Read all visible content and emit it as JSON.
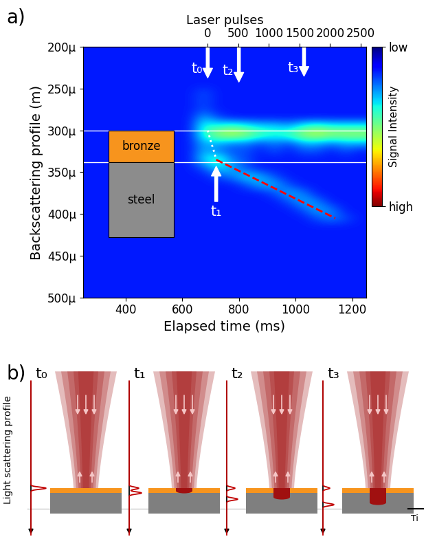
{
  "chart_data": {
    "type": "heatmap",
    "panel_label": "a)",
    "x_label": "Elapsed time (ms)",
    "y_label": "Backscattering profile (m)",
    "x2_label": "Laser pulses",
    "xlim": [
      250,
      1250
    ],
    "xticks": [
      400,
      600,
      800,
      1000,
      1200
    ],
    "ylim": [
      0.0005,
      0.0002
    ],
    "yticks": [
      {
        "value": 0.0002,
        "label": "200μ"
      },
      {
        "value": 0.00025,
        "label": "250μ"
      },
      {
        "value": 0.0003,
        "label": "300μ"
      },
      {
        "value": 0.00035,
        "label": "350μ"
      },
      {
        "value": 0.0004,
        "label": "400μ"
      },
      {
        "value": 0.00045,
        "label": "450μ"
      },
      {
        "value": 0.0005,
        "label": "500μ"
      }
    ],
    "x2lim": [
      -2037,
      2593
    ],
    "x2ticks": [
      0,
      500,
      1000,
      1500,
      2000,
      2500
    ],
    "x_edges": [
      250,
      300,
      350,
      400,
      450,
      500,
      550,
      600,
      650,
      700,
      750,
      800,
      850,
      900,
      950,
      1000,
      1050,
      1100,
      1150,
      1200,
      1250
    ],
    "y_edges": [
      0.0002,
      0.00021,
      0.00022,
      0.00023,
      0.00024,
      0.00025,
      0.00026,
      0.00027,
      0.00028,
      0.00029,
      0.0003,
      0.00031,
      0.00032,
      0.00033,
      0.00034,
      0.00035,
      0.00036,
      0.00037,
      0.00038,
      0.00039,
      0.0004,
      0.00041,
      0.00042,
      0.00043,
      0.00044,
      0.00045,
      0.00046,
      0.00047,
      0.00048,
      0.00049,
      0.0005
    ],
    "z": [
      [
        0.15,
        0.15,
        0.15,
        0.15,
        0.15,
        0.15,
        0.15,
        0.15,
        0.15,
        0.15,
        0.15,
        0.15,
        0.15,
        0.15,
        0.15,
        0.15,
        0.15,
        0.15,
        0.15,
        0.15
      ],
      [
        0.15,
        0.15,
        0.15,
        0.15,
        0.15,
        0.15,
        0.15,
        0.15,
        0.15,
        0.15,
        0.15,
        0.15,
        0.15,
        0.15,
        0.15,
        0.15,
        0.15,
        0.15,
        0.15,
        0.15
      ],
      [
        0.15,
        0.15,
        0.15,
        0.15,
        0.15,
        0.15,
        0.15,
        0.15,
        0.15,
        0.15,
        0.15,
        0.15,
        0.15,
        0.15,
        0.15,
        0.15,
        0.15,
        0.15,
        0.15,
        0.15
      ],
      [
        0.15,
        0.15,
        0.15,
        0.15,
        0.15,
        0.15,
        0.15,
        0.15,
        0.15,
        0.15,
        0.15,
        0.15,
        0.15,
        0.15,
        0.15,
        0.15,
        0.15,
        0.15,
        0.15,
        0.15
      ],
      [
        0.15,
        0.15,
        0.15,
        0.15,
        0.15,
        0.15,
        0.15,
        0.15,
        0.15,
        0.15,
        0.15,
        0.15,
        0.15,
        0.15,
        0.15,
        0.15,
        0.15,
        0.15,
        0.15,
        0.15
      ],
      [
        0.15,
        0.15,
        0.15,
        0.15,
        0.15,
        0.15,
        0.15,
        0.15,
        0.2,
        0.15,
        0.15,
        0.15,
        0.15,
        0.15,
        0.15,
        0.15,
        0.15,
        0.15,
        0.15,
        0.15
      ],
      [
        0.15,
        0.15,
        0.15,
        0.15,
        0.15,
        0.15,
        0.15,
        0.15,
        0.2,
        0.15,
        0.15,
        0.15,
        0.15,
        0.15,
        0.15,
        0.15,
        0.15,
        0.15,
        0.15,
        0.15
      ],
      [
        0.15,
        0.15,
        0.15,
        0.15,
        0.15,
        0.15,
        0.15,
        0.15,
        0.2,
        0.15,
        0.15,
        0.15,
        0.15,
        0.15,
        0.15,
        0.15,
        0.15,
        0.15,
        0.15,
        0.15
      ],
      [
        0.15,
        0.15,
        0.15,
        0.15,
        0.15,
        0.15,
        0.15,
        0.15,
        0.3,
        0.2,
        0.15,
        0.15,
        0.15,
        0.15,
        0.15,
        0.15,
        0.15,
        0.15,
        0.15,
        0.15
      ],
      [
        0.15,
        0.15,
        0.15,
        0.15,
        0.15,
        0.15,
        0.15,
        0.15,
        0.4,
        0.4,
        0.45,
        0.4,
        0.35,
        0.35,
        0.3,
        0.4,
        0.45,
        0.4,
        0.4,
        0.4
      ],
      [
        0.15,
        0.15,
        0.15,
        0.15,
        0.15,
        0.15,
        0.15,
        0.15,
        0.4,
        0.55,
        0.6,
        0.55,
        0.45,
        0.4,
        0.45,
        0.55,
        0.6,
        0.55,
        0.55,
        0.55
      ],
      [
        0.15,
        0.15,
        0.15,
        0.15,
        0.15,
        0.15,
        0.15,
        0.15,
        0.3,
        0.3,
        0.25,
        0.25,
        0.2,
        0.25,
        0.2,
        0.3,
        0.3,
        0.25,
        0.3,
        0.3
      ],
      [
        0.15,
        0.15,
        0.15,
        0.15,
        0.15,
        0.15,
        0.15,
        0.15,
        0.3,
        0.25,
        0.2,
        0.2,
        0.15,
        0.2,
        0.15,
        0.2,
        0.2,
        0.15,
        0.2,
        0.15
      ],
      [
        0.15,
        0.15,
        0.15,
        0.15,
        0.15,
        0.15,
        0.15,
        0.15,
        0.35,
        0.45,
        0.25,
        0.2,
        0.15,
        0.15,
        0.15,
        0.15,
        0.15,
        0.15,
        0.15,
        0.15
      ],
      [
        0.15,
        0.15,
        0.15,
        0.15,
        0.15,
        0.15,
        0.15,
        0.15,
        0.2,
        0.35,
        0.3,
        0.2,
        0.15,
        0.15,
        0.15,
        0.15,
        0.15,
        0.15,
        0.15,
        0.15
      ],
      [
        0.15,
        0.15,
        0.15,
        0.15,
        0.15,
        0.15,
        0.15,
        0.15,
        0.15,
        0.2,
        0.25,
        0.35,
        0.3,
        0.2,
        0.15,
        0.15,
        0.15,
        0.15,
        0.15,
        0.15
      ],
      [
        0.15,
        0.15,
        0.15,
        0.15,
        0.15,
        0.15,
        0.15,
        0.15,
        0.15,
        0.15,
        0.15,
        0.2,
        0.3,
        0.3,
        0.2,
        0.15,
        0.15,
        0.15,
        0.15,
        0.15
      ],
      [
        0.15,
        0.15,
        0.15,
        0.15,
        0.15,
        0.15,
        0.15,
        0.15,
        0.15,
        0.15,
        0.15,
        0.15,
        0.15,
        0.2,
        0.3,
        0.25,
        0.15,
        0.15,
        0.15,
        0.15
      ],
      [
        0.15,
        0.15,
        0.15,
        0.15,
        0.15,
        0.15,
        0.15,
        0.15,
        0.15,
        0.15,
        0.15,
        0.15,
        0.15,
        0.15,
        0.2,
        0.3,
        0.25,
        0.15,
        0.15,
        0.15
      ],
      [
        0.15,
        0.15,
        0.15,
        0.15,
        0.15,
        0.15,
        0.15,
        0.15,
        0.15,
        0.15,
        0.15,
        0.15,
        0.15,
        0.15,
        0.15,
        0.2,
        0.3,
        0.25,
        0.15,
        0.15
      ],
      [
        0.15,
        0.15,
        0.15,
        0.15,
        0.15,
        0.15,
        0.15,
        0.15,
        0.15,
        0.15,
        0.15,
        0.15,
        0.15,
        0.15,
        0.15,
        0.15,
        0.2,
        0.25,
        0.2,
        0.15
      ],
      [
        0.15,
        0.15,
        0.15,
        0.15,
        0.15,
        0.15,
        0.15,
        0.15,
        0.15,
        0.15,
        0.15,
        0.15,
        0.15,
        0.15,
        0.15,
        0.15,
        0.15,
        0.15,
        0.15,
        0.15
      ],
      [
        0.15,
        0.15,
        0.15,
        0.15,
        0.15,
        0.15,
        0.15,
        0.15,
        0.15,
        0.15,
        0.15,
        0.15,
        0.15,
        0.15,
        0.15,
        0.15,
        0.15,
        0.15,
        0.15,
        0.15
      ],
      [
        0.15,
        0.15,
        0.15,
        0.15,
        0.15,
        0.15,
        0.15,
        0.15,
        0.15,
        0.15,
        0.15,
        0.15,
        0.15,
        0.15,
        0.15,
        0.15,
        0.15,
        0.15,
        0.15,
        0.15
      ],
      [
        0.15,
        0.15,
        0.15,
        0.15,
        0.15,
        0.15,
        0.15,
        0.15,
        0.15,
        0.15,
        0.15,
        0.15,
        0.15,
        0.15,
        0.15,
        0.15,
        0.15,
        0.15,
        0.15,
        0.15
      ],
      [
        0.15,
        0.15,
        0.15,
        0.15,
        0.15,
        0.15,
        0.15,
        0.15,
        0.15,
        0.15,
        0.15,
        0.15,
        0.15,
        0.15,
        0.15,
        0.15,
        0.15,
        0.15,
        0.15,
        0.15
      ],
      [
        0.15,
        0.15,
        0.15,
        0.15,
        0.15,
        0.15,
        0.15,
        0.15,
        0.15,
        0.15,
        0.15,
        0.15,
        0.15,
        0.15,
        0.15,
        0.15,
        0.15,
        0.15,
        0.15,
        0.15
      ],
      [
        0.15,
        0.15,
        0.15,
        0.15,
        0.15,
        0.15,
        0.15,
        0.15,
        0.15,
        0.15,
        0.15,
        0.15,
        0.15,
        0.15,
        0.15,
        0.15,
        0.15,
        0.15,
        0.15,
        0.15
      ],
      [
        0.15,
        0.15,
        0.15,
        0.15,
        0.15,
        0.15,
        0.15,
        0.15,
        0.15,
        0.15,
        0.15,
        0.15,
        0.15,
        0.15,
        0.15,
        0.15,
        0.15,
        0.15,
        0.15,
        0.15
      ],
      [
        0.15,
        0.15,
        0.15,
        0.15,
        0.15,
        0.15,
        0.15,
        0.15,
        0.15,
        0.15,
        0.15,
        0.15,
        0.15,
        0.15,
        0.15,
        0.15,
        0.15,
        0.15,
        0.15,
        0.15
      ]
    ],
    "colorbar": {
      "label": "Signal Intensity",
      "range": [
        0,
        1
      ],
      "ticks": [
        {
          "value": 0,
          "label": "low"
        },
        {
          "value": 1,
          "label": "high"
        }
      ]
    },
    "layers": [
      {
        "name": "bronze",
        "color": "#f7941d",
        "top": 0.0003,
        "bottom": 0.000338
      },
      {
        "name": "steel",
        "color": "#8c8c8c",
        "top": 0.000338,
        "bottom": 0.000428
      }
    ],
    "lines": [
      {
        "color": "white",
        "line_style": "dotted",
        "x": [
          690,
          700,
          712,
          720
        ],
        "y": [
          0.0003,
          0.000312,
          0.000325,
          0.000335
        ]
      },
      {
        "color": "red",
        "line_style": "dashed",
        "x": [
          720,
          1140
        ],
        "y": [
          0.000335,
          0.000405
        ]
      }
    ],
    "markers": [
      {
        "label": "t₀",
        "x": 690,
        "y_start": 0.0002,
        "y_end": 0.000237
      },
      {
        "label": "t₁",
        "x": 720,
        "y_start": 0.000385,
        "y_end": 0.000343
      },
      {
        "label": "t₂",
        "x": 800,
        "y_start": 0.0002,
        "y_end": 0.000242
      },
      {
        "label": "t₃",
        "x": 1030,
        "y_start": 0.0002,
        "y_end": 0.000235
      }
    ]
  },
  "diagram": {
    "panel_label": "b)",
    "axis_label": "Light scattering profile",
    "frames": [
      "t₀",
      "t₁",
      "t₂",
      "t₃"
    ],
    "time_label": "Ti"
  }
}
